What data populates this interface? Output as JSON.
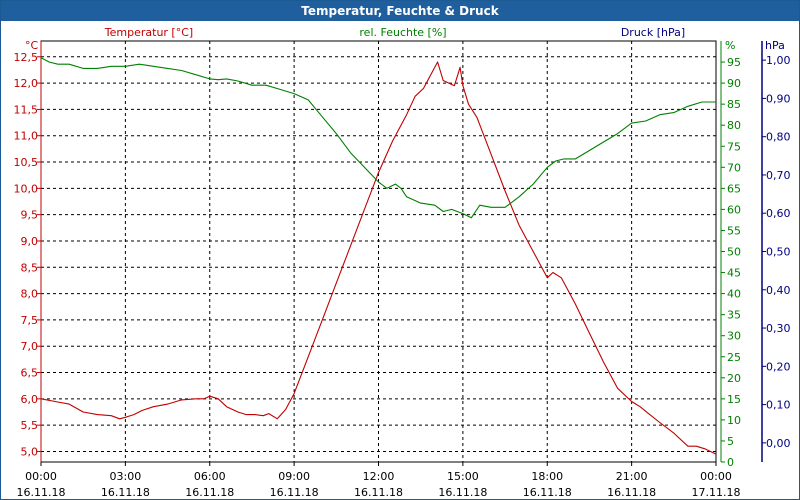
{
  "window": {
    "title": "Temperatur, Feuchte & Druck"
  },
  "chart_data": {
    "type": "line",
    "title": "Temperatur, Feuchte & Druck",
    "series_labels": {
      "temperature": "Temperatur [°C]",
      "humidity": "rel. Feuchte [%]",
      "pressure": "Druck [hPa]"
    },
    "axes": {
      "left": {
        "unit": "°C",
        "min": 4.8,
        "max": 12.8,
        "color": "#c00000",
        "ticks": [
          "5,0",
          "5,5",
          "6,0",
          "6,5",
          "7,0",
          "7,5",
          "8,0",
          "8,5",
          "9,0",
          "9,5",
          "10,0",
          "10,5",
          "11,0",
          "11,5",
          "12,0",
          "12,5"
        ],
        "tick_values": [
          5.0,
          5.5,
          6.0,
          6.5,
          7.0,
          7.5,
          8.0,
          8.5,
          9.0,
          9.5,
          10.0,
          10.5,
          11.0,
          11.5,
          12.0,
          12.5
        ]
      },
      "mid": {
        "unit": "%",
        "min": 0,
        "max": 100,
        "color": "#008000",
        "ticks": [
          "0",
          "5",
          "10",
          "15",
          "20",
          "25",
          "30",
          "35",
          "40",
          "45",
          "50",
          "55",
          "60",
          "65",
          "70",
          "75",
          "80",
          "85",
          "90",
          "95"
        ],
        "tick_values": [
          0,
          5,
          10,
          15,
          20,
          25,
          30,
          35,
          40,
          45,
          50,
          55,
          60,
          65,
          70,
          75,
          80,
          85,
          90,
          95
        ]
      },
      "right": {
        "unit": "hPa",
        "min": -0.05,
        "max": 1.05,
        "color": "#000080",
        "ticks": [
          "0,00",
          "0,10",
          "0,20",
          "0,30",
          "0,40",
          "0,50",
          "0,60",
          "0,70",
          "0,80",
          "0,90",
          "1,00"
        ],
        "tick_values": [
          0.0,
          0.1,
          0.2,
          0.3,
          0.4,
          0.5,
          0.6,
          0.7,
          0.8,
          0.9,
          1.0
        ]
      },
      "x": {
        "min": 0,
        "max": 24,
        "tick_values": [
          0,
          3,
          6,
          9,
          12,
          15,
          18,
          21,
          24
        ],
        "tick_times": [
          "00:00",
          "03:00",
          "06:00",
          "09:00",
          "12:00",
          "15:00",
          "18:00",
          "21:00",
          "00:00"
        ],
        "tick_dates": [
          "16.11.18",
          "16.11.18",
          "16.11.18",
          "16.11.18",
          "16.11.18",
          "16.11.18",
          "16.11.18",
          "16.11.18",
          "17.11.18"
        ]
      }
    },
    "grid": true,
    "series": [
      {
        "key": "temperature",
        "color": "#c00000",
        "axis": "left",
        "x": [
          0,
          0.5,
          1,
          1.5,
          2,
          2.5,
          2.8,
          3,
          3.3,
          3.6,
          4,
          4.5,
          5,
          5.5,
          5.8,
          6,
          6.3,
          6.6,
          7,
          7.3,
          7.6,
          7.9,
          8.1,
          8.4,
          8.7,
          9,
          9.5,
          10,
          10.5,
          11,
          11.5,
          12,
          12.5,
          13,
          13.3,
          13.6,
          13.9,
          14.1,
          14.3,
          14.5,
          14.7,
          14.9,
          15,
          15.2,
          15.5,
          16,
          16.5,
          17,
          17.5,
          18,
          18.2,
          18.5,
          18.8,
          19,
          19.5,
          20,
          20.5,
          21,
          21.3,
          21.6,
          22,
          22.5,
          23,
          23.3,
          23.6,
          24
        ],
        "y": [
          6.0,
          5.95,
          5.9,
          5.75,
          5.7,
          5.68,
          5.62,
          5.65,
          5.7,
          5.78,
          5.85,
          5.9,
          5.98,
          6.0,
          6.0,
          6.05,
          6.0,
          5.85,
          5.75,
          5.7,
          5.7,
          5.68,
          5.72,
          5.62,
          5.8,
          6.1,
          6.8,
          7.5,
          8.2,
          8.9,
          9.6,
          10.3,
          10.9,
          11.4,
          11.75,
          11.9,
          12.2,
          12.4,
          12.05,
          12.0,
          11.95,
          12.3,
          11.95,
          11.6,
          11.35,
          10.65,
          9.95,
          9.3,
          8.8,
          8.3,
          8.4,
          8.3,
          8.0,
          7.8,
          7.25,
          6.7,
          6.2,
          5.95,
          5.85,
          5.72,
          5.55,
          5.35,
          5.1,
          5.1,
          5.05,
          4.95
        ]
      },
      {
        "key": "humidity",
        "color": "#008000",
        "axis": "mid",
        "x": [
          0,
          0.3,
          0.6,
          1,
          1.5,
          2,
          2.5,
          3,
          3.5,
          4,
          4.5,
          5,
          5.5,
          6,
          6.3,
          6.6,
          7,
          7.5,
          8,
          8.5,
          9,
          9.5,
          10,
          10.5,
          11,
          11.5,
          12,
          12.3,
          12.6,
          12.8,
          13,
          13.5,
          14,
          14.3,
          14.6,
          15,
          15.3,
          15.6,
          16,
          16.5,
          17,
          17.5,
          18,
          18.3,
          18.6,
          19,
          19.5,
          20,
          20.5,
          21,
          21.5,
          22,
          22.5,
          23,
          23.5,
          24
        ],
        "y": [
          96,
          95,
          94.5,
          94.5,
          93.5,
          93.5,
          94,
          94,
          94.5,
          94,
          93.5,
          93,
          92,
          91,
          90.8,
          91,
          90.5,
          89.5,
          89.5,
          88.5,
          87.5,
          86,
          82,
          78,
          73.5,
          70,
          66.5,
          65,
          66,
          65,
          63,
          61.5,
          61,
          59.5,
          60,
          59,
          58,
          61,
          60.5,
          60.5,
          63,
          66,
          70,
          71.5,
          72,
          72,
          74,
          76,
          78,
          80.5,
          81,
          82.5,
          83,
          84.5,
          85.5,
          85.5
        ]
      },
      {
        "key": "pressure",
        "color": "#000080",
        "axis": "right",
        "x": [],
        "y": []
      }
    ]
  }
}
